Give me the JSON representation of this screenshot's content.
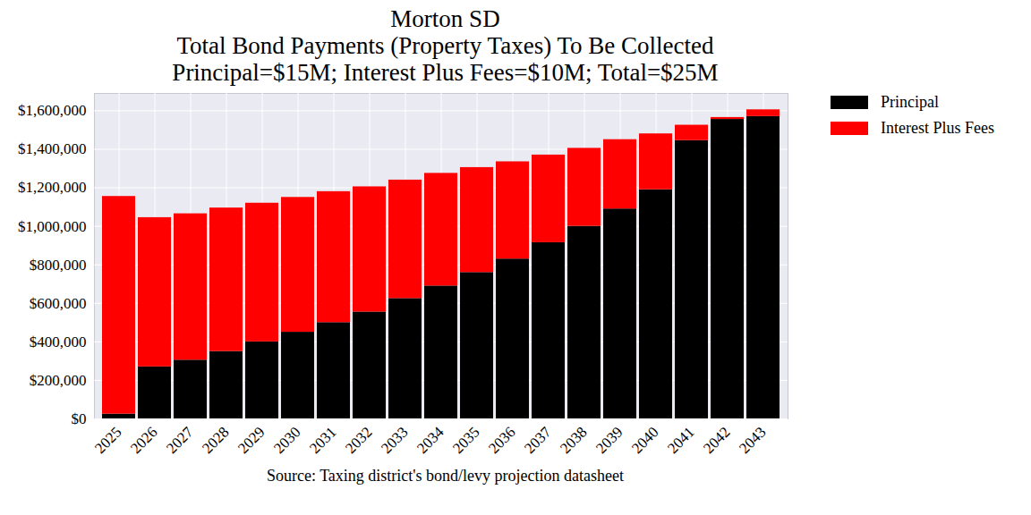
{
  "chart_data": {
    "type": "bar",
    "stacked": true,
    "title": "Morton SD",
    "subtitle": [
      "Total Bond Payments (Property Taxes) To Be Collected",
      "Principal=$15M; Interest Plus Fees=$10M; Total=$25M"
    ],
    "x_label": "Source: Taxing district's bond/levy projection datasheet",
    "categories": [
      "2025",
      "2026",
      "2027",
      "2028",
      "2029",
      "2030",
      "2031",
      "2032",
      "2033",
      "2034",
      "2035",
      "2036",
      "2037",
      "2038",
      "2039",
      "2040",
      "2041",
      "2042",
      "2043"
    ],
    "series": [
      {
        "name": "Principal",
        "color": "#000000",
        "values": [
          25000,
          270000,
          305000,
          350000,
          400000,
          450000,
          500000,
          555000,
          625000,
          690000,
          760000,
          830000,
          915000,
          1000000,
          1090000,
          1190000,
          1445000,
          1555000,
          1570000
        ]
      },
      {
        "name": "Interest Plus Fees",
        "color": "#ff0000",
        "values": [
          1130000,
          775000,
          760000,
          745000,
          720000,
          700000,
          680000,
          650000,
          615000,
          585000,
          545000,
          505000,
          455000,
          405000,
          360000,
          290000,
          80000,
          10000,
          35000
        ]
      }
    ],
    "ylim": [
      0,
      1690000
    ],
    "yticks": [
      {
        "value": 0,
        "label": "$0"
      },
      {
        "value": 200000,
        "label": "$200,000"
      },
      {
        "value": 400000,
        "label": "$400,000"
      },
      {
        "value": 600000,
        "label": "$600,000"
      },
      {
        "value": 800000,
        "label": "$800,000"
      },
      {
        "value": 1000000,
        "label": "$1,000,000"
      },
      {
        "value": 1200000,
        "label": "$1,200,000"
      },
      {
        "value": 1400000,
        "label": "$1,400,000"
      },
      {
        "value": 1600000,
        "label": "$1,600,000"
      }
    ],
    "grid": true,
    "legend": "upper right"
  }
}
